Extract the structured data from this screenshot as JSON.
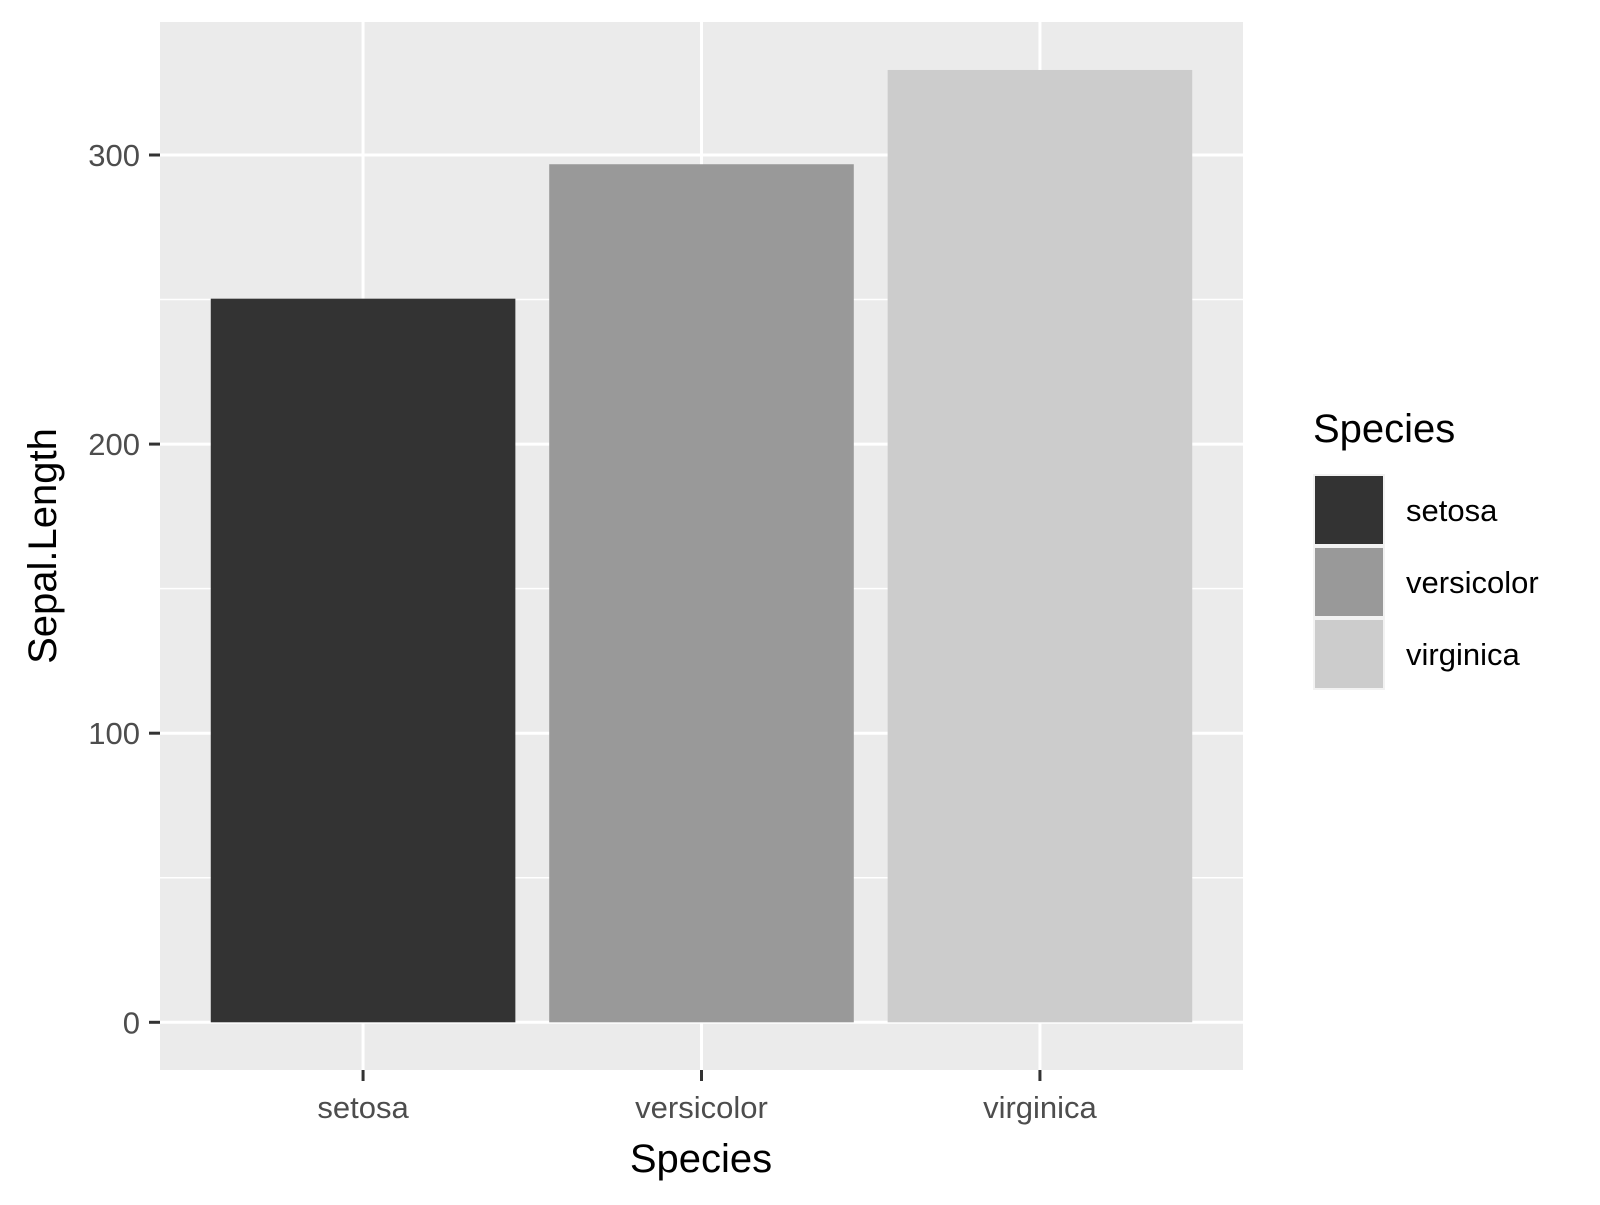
{
  "chart_data": {
    "type": "bar",
    "categories": [
      "setosa",
      "versicolor",
      "virginica"
    ],
    "values": [
      250.3,
      296.8,
      329.4
    ],
    "xlabel": "Species",
    "ylabel": "Sepal.Length",
    "ylim": [
      -16.5,
      346
    ],
    "yticks": [
      0,
      100,
      200,
      300
    ],
    "grid": true,
    "colors": [
      "#333333",
      "#999999",
      "#cccccc"
    ],
    "panel_background": "#ebebeb",
    "grid_color": "#ffffff",
    "legend": {
      "title": "Species",
      "position": "right",
      "entries": [
        "setosa",
        "versicolor",
        "virginica"
      ]
    }
  }
}
